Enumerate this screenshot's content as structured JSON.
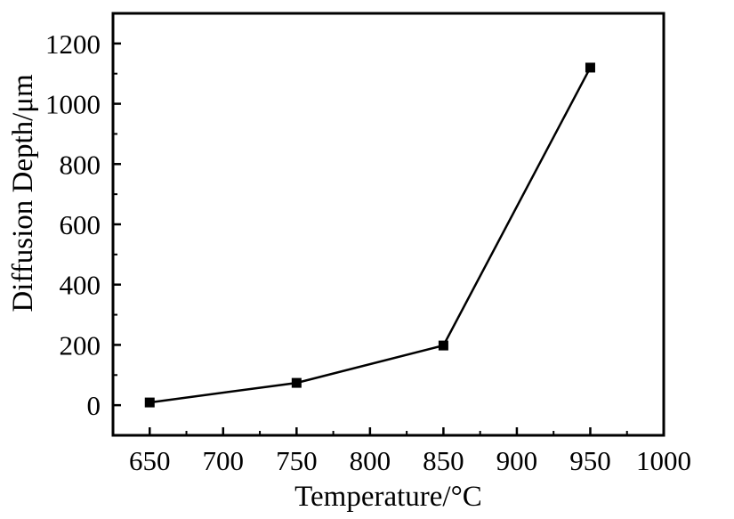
{
  "chart_data": {
    "type": "line",
    "title": "",
    "xlabel": "Temperature/°C",
    "ylabel": "Diffusion Depth/μm",
    "xlim": [
      625,
      1000
    ],
    "ylim": [
      -100,
      1300
    ],
    "xticks": [
      650,
      700,
      750,
      800,
      850,
      900,
      950,
      1000
    ],
    "yticks": [
      0,
      200,
      400,
      600,
      800,
      1000,
      1200
    ],
    "grid": false,
    "series": [
      {
        "name": "Diffusion depth",
        "marker": "square",
        "color": "#000000",
        "x": [
          650,
          750,
          850,
          950
        ],
        "y": [
          9,
          74,
          198,
          1120
        ]
      }
    ]
  }
}
